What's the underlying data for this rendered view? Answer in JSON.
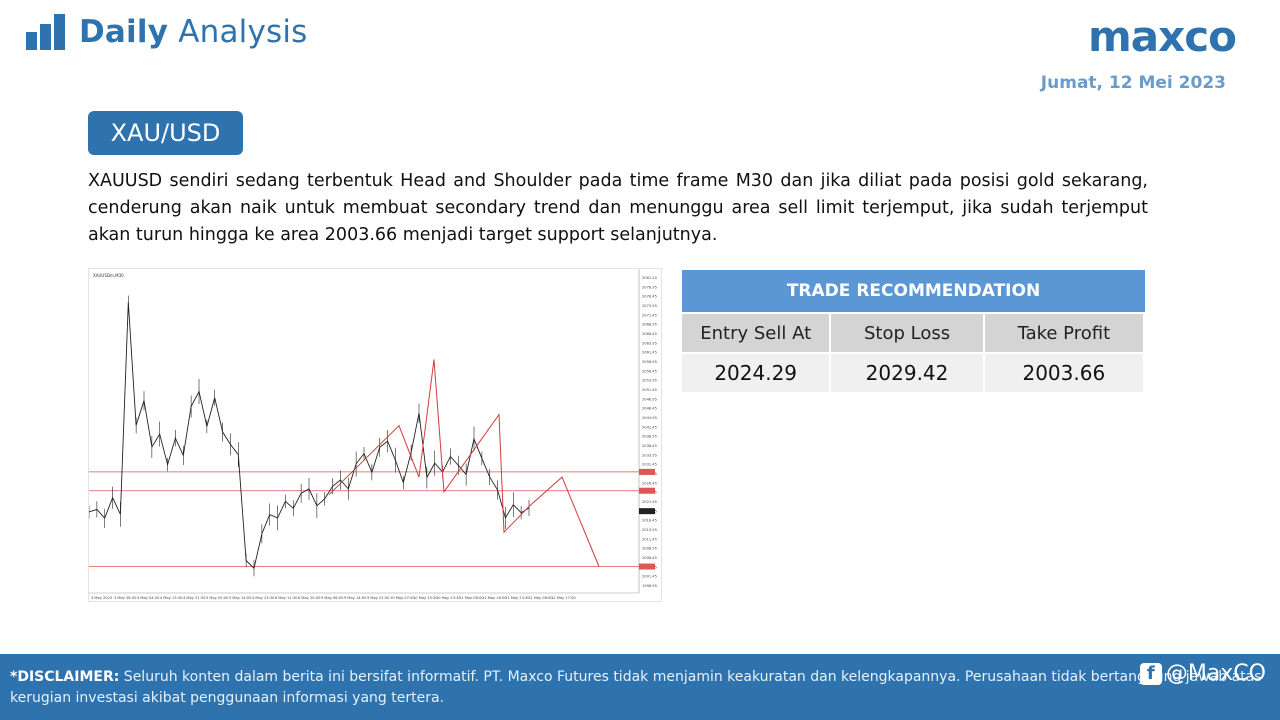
{
  "header": {
    "title_bold": "Daily",
    "title_light": "Analysis",
    "brand": "maxco",
    "date": "Jumat, 12 Mei 2023"
  },
  "instrument": {
    "symbol": "XAU/USD"
  },
  "analysis": {
    "text": "XAUUSD sendiri sedang terbentuk Head and Shoulder pada time frame M30 dan jika diliat pada posisi gold sekarang, cenderung akan naik untuk membuat secondary trend dan menunggu area sell limit terjemput, jika sudah terjemput akan turun hingga ke area 2003.66 menjadi target support selanjutnya."
  },
  "trade_recommendation": {
    "title": "TRADE RECOMMENDATION",
    "columns": [
      "Entry Sell At",
      "Stop Loss",
      "Take Profit"
    ],
    "values": [
      "2024.29",
      "2029.42",
      "2003.66"
    ]
  },
  "chart_data": {
    "type": "line",
    "symbol_label": "XAUUSDm,M30",
    "timeframe": "M30",
    "ylim": [
      1997.0,
      2083.0
    ],
    "y_ticks": [
      "2081.20",
      "2078.95",
      "2076.45",
      "2073.95",
      "2071.45",
      "2068.95",
      "2066.45",
      "2063.95",
      "2061.45",
      "2058.95",
      "2056.45",
      "2053.95",
      "2051.45",
      "2048.95",
      "2046.45",
      "2043.95",
      "2041.45",
      "2038.95",
      "2036.45",
      "2033.95",
      "2031.45",
      "2028.95",
      "2026.45",
      "2023.95",
      "2021.45",
      "2018.95",
      "2016.45",
      "2013.95",
      "2011.45",
      "2008.95",
      "2006.45",
      "2003.95",
      "2001.45",
      "1998.95"
    ],
    "x_ticks": [
      "3 May 2023",
      "3 May 18:30",
      "4 May 04:30",
      "4 May 13:30",
      "4 May 21:30",
      "5 May 05:00",
      "5 May 14:00",
      "5 May 23:30",
      "8 May 11:30",
      "8 May 20:30",
      "9 May 06:00",
      "9 May 14:00",
      "9 May 22:30",
      "10 May 07:00",
      "10 May 15:30",
      "10 May 23:30",
      "11 May 08:00",
      "11 May 16:00",
      "11 May 23:30",
      "12 May 08:00",
      "12 May 17:00"
    ],
    "price_points": [
      2018.5,
      2019.2,
      2016.8,
      2022.4,
      2017.9,
      2075.6,
      2042.1,
      2048.8,
      2036.2,
      2039.7,
      2031.4,
      2038.6,
      2033.9,
      2047.2,
      2051.3,
      2041.8,
      2049.6,
      2040.3,
      2036.9,
      2034.1,
      2005.3,
      2003.2,
      2012.6,
      2017.8,
      2016.9,
      2021.4,
      2019.5,
      2023.6,
      2024.8,
      2020.2,
      2022.1,
      2025.5,
      2027.2,
      2024.8,
      2031.6,
      2034.4,
      2029.3,
      2036.1,
      2037.8,
      2032.6,
      2026.5,
      2034.7,
      2045.4,
      2027.9,
      2031.8,
      2029.4,
      2033.6,
      2031.2,
      2028.7,
      2038.4,
      2033.1,
      2028.0,
      2024.5,
      2016.9,
      2020.5,
      2018.3,
      2019.6
    ],
    "resistance_levels": [
      2029.42,
      2024.29
    ],
    "support_levels": [
      2003.66
    ],
    "current_price": "2018.73"
  }
}
